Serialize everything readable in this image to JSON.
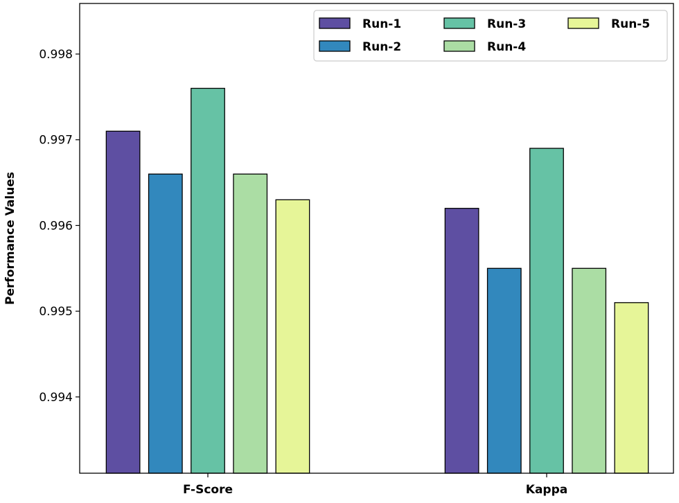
{
  "chart_data": {
    "type": "bar",
    "title": "",
    "xlabel": "",
    "ylabel": "Performance Values",
    "categories": [
      "F-Score",
      "Kappa"
    ],
    "series": [
      {
        "name": "Run-1",
        "color": "#5e4fa2",
        "values": [
          0.9971,
          0.9962
        ]
      },
      {
        "name": "Run-2",
        "color": "#3288bd",
        "values": [
          0.9966,
          0.9955
        ]
      },
      {
        "name": "Run-3",
        "color": "#66c2a5",
        "values": [
          0.9976,
          0.9969
        ]
      },
      {
        "name": "Run-4",
        "color": "#abdda4",
        "values": [
          0.9966,
          0.9955
        ]
      },
      {
        "name": "Run-5",
        "color": "#e6f598",
        "values": [
          0.9963,
          0.9951
        ]
      }
    ],
    "yticks": [
      "0.994",
      "0.995",
      "0.996",
      "0.997",
      "0.998"
    ],
    "ylim": [
      0.99311,
      0.99859
    ],
    "grid": false,
    "legend": "top-right"
  }
}
